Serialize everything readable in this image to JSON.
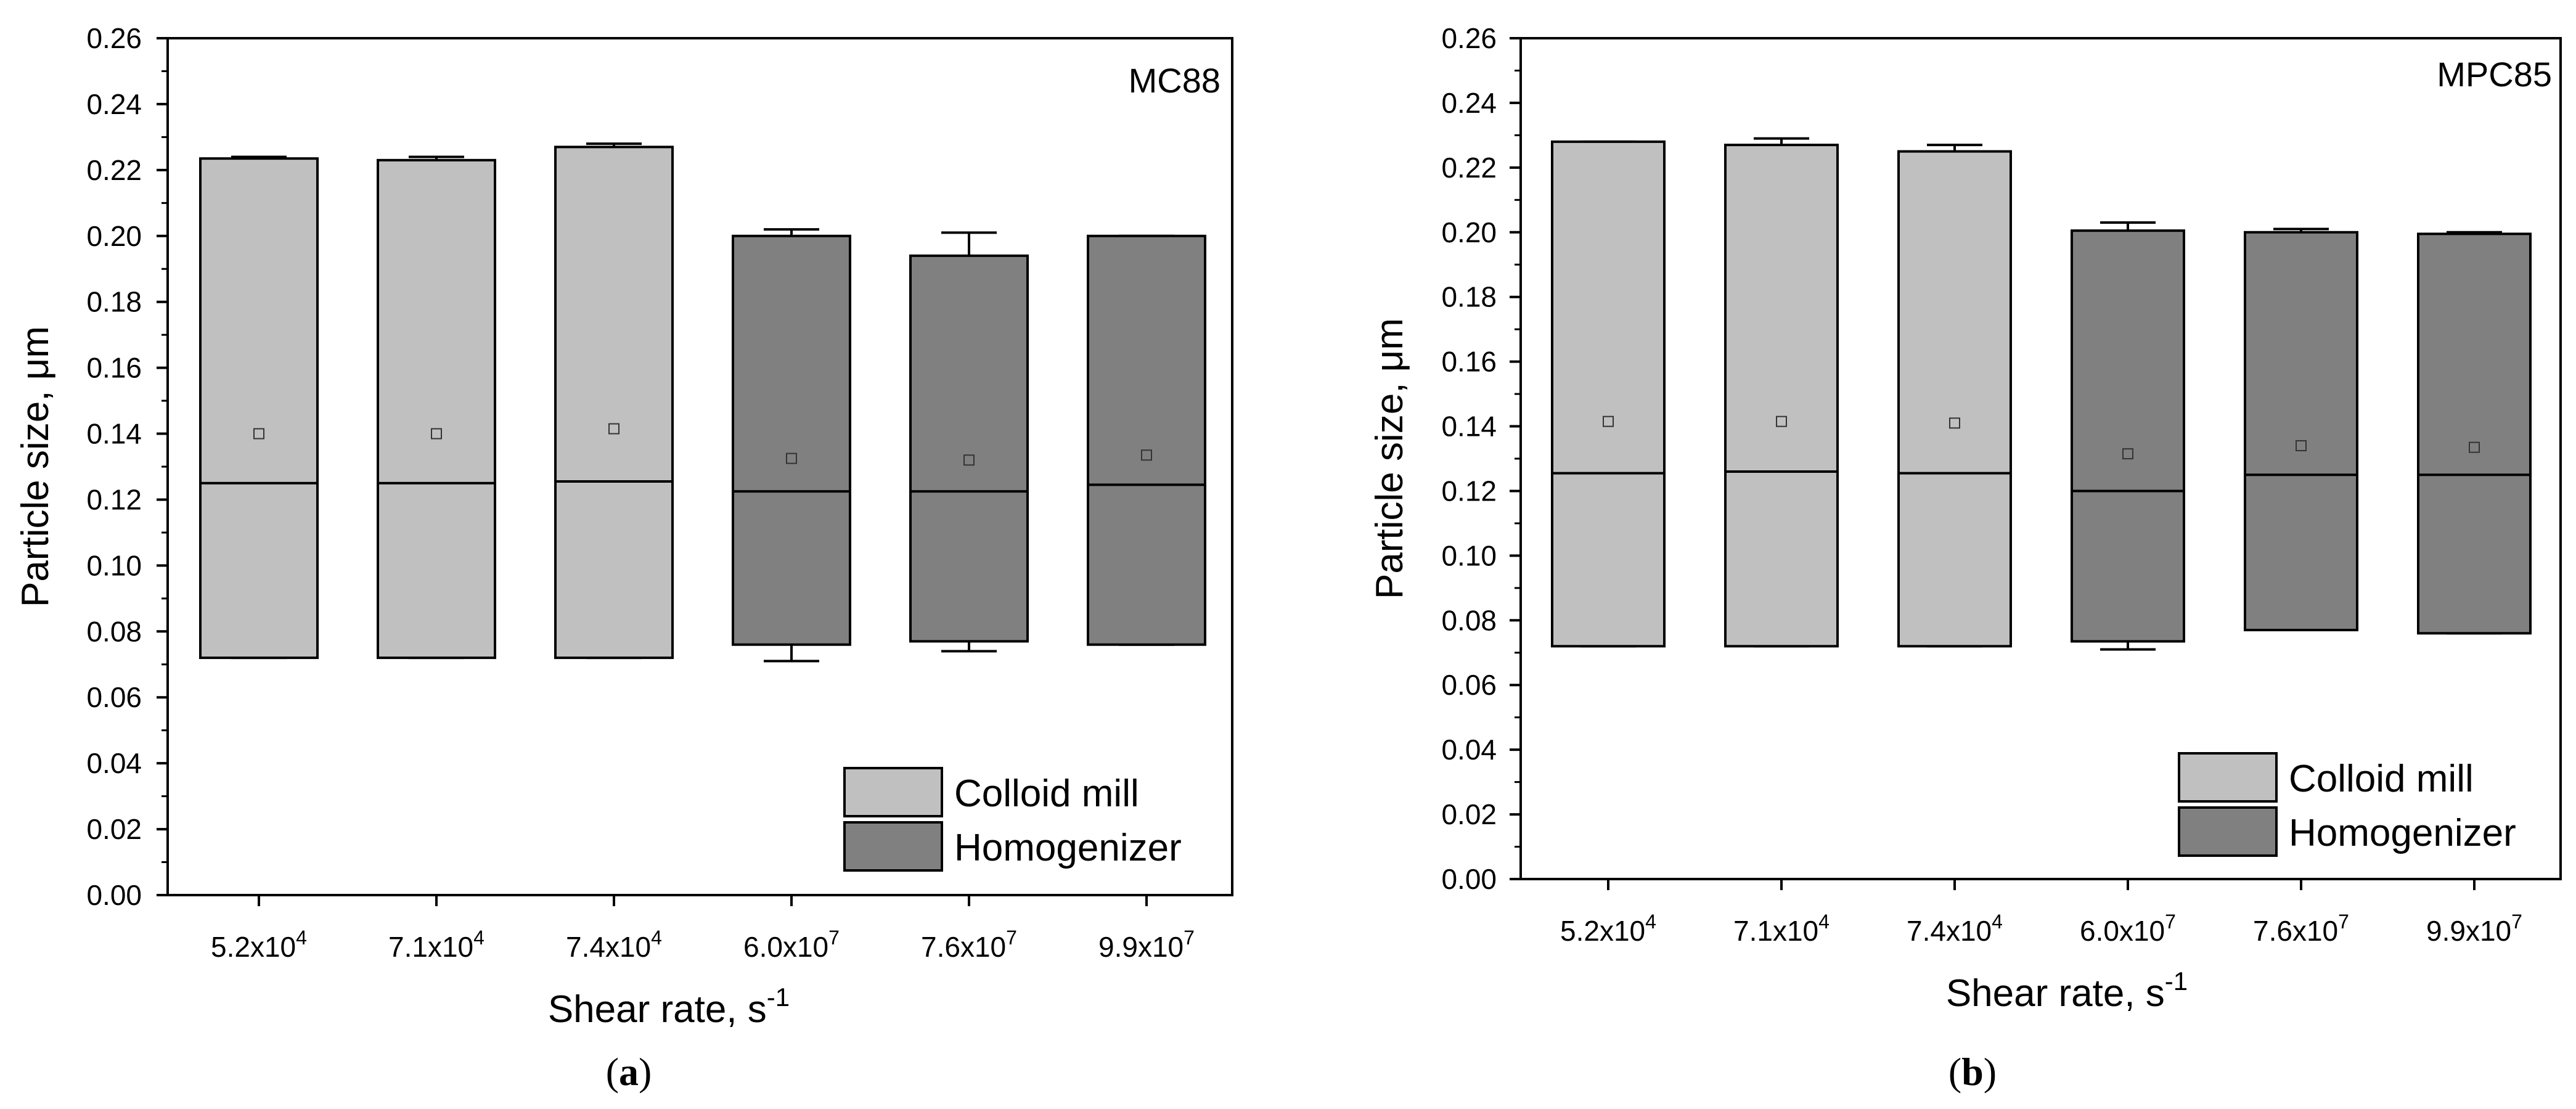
{
  "colors": {
    "colloid_mill": "#c0c0c0",
    "homogenizer": "#808080",
    "axis": "#000000"
  },
  "chart_data": [
    {
      "type": "box",
      "id": "a",
      "panel_label": "MC88",
      "caption": "a",
      "xlabel": {
        "text": "Shear rate, s",
        "sup": "-1"
      },
      "ylabel": "Particle size, μm",
      "ylim": [
        0,
        0.26
      ],
      "y_ticks": [
        "0.00",
        "0.02",
        "0.04",
        "0.06",
        "0.08",
        "0.10",
        "0.12",
        "0.14",
        "0.16",
        "0.18",
        "0.20",
        "0.22",
        "0.24",
        "0.26"
      ],
      "categories": [
        {
          "base": "5.2x10",
          "exp": "4"
        },
        {
          "base": "7.1x10",
          "exp": "4"
        },
        {
          "base": "7.4x10",
          "exp": "4"
        },
        {
          "base": "6.0x10",
          "exp": "7"
        },
        {
          "base": "7.6x10",
          "exp": "7"
        },
        {
          "base": "9.9x10",
          "exp": "7"
        }
      ],
      "legend": [
        "Colloid mill",
        "Homogenizer"
      ],
      "boxes": [
        {
          "series": "Colloid mill",
          "low": 0.072,
          "high": 0.2235,
          "median": 0.125,
          "mean": 0.14,
          "whisker_low": 0.072,
          "whisker_high": 0.224
        },
        {
          "series": "Colloid mill",
          "low": 0.072,
          "high": 0.223,
          "median": 0.125,
          "mean": 0.14,
          "whisker_low": 0.072,
          "whisker_high": 0.224
        },
        {
          "series": "Colloid mill",
          "low": 0.072,
          "high": 0.227,
          "median": 0.1255,
          "mean": 0.1415,
          "whisker_low": 0.072,
          "whisker_high": 0.228
        },
        {
          "series": "Homogenizer",
          "low": 0.076,
          "high": 0.2,
          "median": 0.1225,
          "mean": 0.1325,
          "whisker_low": 0.071,
          "whisker_high": 0.202
        },
        {
          "series": "Homogenizer",
          "low": 0.077,
          "high": 0.194,
          "median": 0.1225,
          "mean": 0.132,
          "whisker_low": 0.074,
          "whisker_high": 0.201
        },
        {
          "series": "Homogenizer",
          "low": 0.076,
          "high": 0.2,
          "median": 0.1245,
          "mean": 0.1335,
          "whisker_low": 0.076,
          "whisker_high": 0.2
        }
      ]
    },
    {
      "type": "box",
      "id": "b",
      "panel_label": "MPC85",
      "caption": "b",
      "xlabel": {
        "text": "Shear rate, s",
        "sup": "-1"
      },
      "ylabel": "Particle size, μm",
      "ylim": [
        0,
        0.26
      ],
      "y_ticks": [
        "0.00",
        "0.02",
        "0.04",
        "0.06",
        "0.08",
        "0.10",
        "0.12",
        "0.14",
        "0.16",
        "0.18",
        "0.20",
        "0.22",
        "0.24",
        "0.26"
      ],
      "categories": [
        {
          "base": "5.2x10",
          "exp": "4"
        },
        {
          "base": "7.1x10",
          "exp": "4"
        },
        {
          "base": "7.4x10",
          "exp": "4"
        },
        {
          "base": "6.0x10",
          "exp": "7"
        },
        {
          "base": "7.6x10",
          "exp": "7"
        },
        {
          "base": "9.9x10",
          "exp": "7"
        }
      ],
      "legend": [
        "Colloid mill",
        "Homogenizer"
      ],
      "boxes": [
        {
          "series": "Colloid mill",
          "low": 0.072,
          "high": 0.228,
          "median": 0.1255,
          "mean": 0.1415,
          "whisker_low": 0.072,
          "whisker_high": 0.228
        },
        {
          "series": "Colloid mill",
          "low": 0.072,
          "high": 0.227,
          "median": 0.126,
          "mean": 0.1415,
          "whisker_low": 0.072,
          "whisker_high": 0.229
        },
        {
          "series": "Colloid mill",
          "low": 0.072,
          "high": 0.225,
          "median": 0.1255,
          "mean": 0.141,
          "whisker_low": 0.072,
          "whisker_high": 0.227
        },
        {
          "series": "Homogenizer",
          "low": 0.0735,
          "high": 0.2005,
          "median": 0.12,
          "mean": 0.1315,
          "whisker_low": 0.071,
          "whisker_high": 0.203
        },
        {
          "series": "Homogenizer",
          "low": 0.077,
          "high": 0.2,
          "median": 0.125,
          "mean": 0.134,
          "whisker_low": 0.077,
          "whisker_high": 0.201
        },
        {
          "series": "Homogenizer",
          "low": 0.076,
          "high": 0.1995,
          "median": 0.125,
          "mean": 0.1335,
          "whisker_low": 0.076,
          "whisker_high": 0.2
        }
      ]
    }
  ]
}
